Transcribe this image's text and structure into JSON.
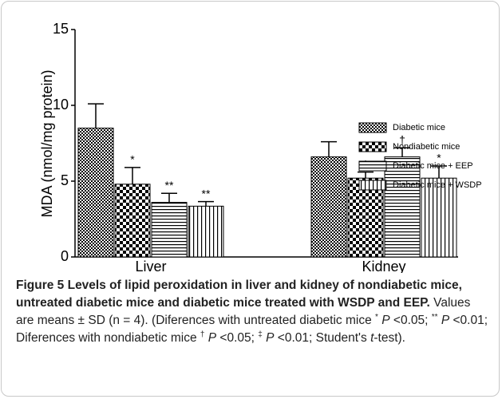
{
  "chart_data": {
    "type": "bar",
    "y_label": "MDA (nmol/mg protein)",
    "categories": [
      "Liver",
      "Kidney"
    ],
    "ylim": [
      0,
      15
    ],
    "yticks": [
      0,
      5,
      10,
      15
    ],
    "series": [
      {
        "name": "Diabetic mice",
        "color": "#000000",
        "pattern": "fine-check",
        "values": [
          8.5,
          6.6
        ],
        "errors": [
          1.6,
          1.0
        ],
        "annotations": [
          null,
          null
        ]
      },
      {
        "name": "Nondiabetic mice",
        "color": "#000000",
        "pattern": "check",
        "values": [
          4.8,
          5.2
        ],
        "errors": [
          1.1,
          0.4
        ],
        "annotations": [
          "*",
          "*"
        ]
      },
      {
        "name": "Diabetic mice + EEP",
        "color": "#000000",
        "pattern": "horizontal",
        "values": [
          3.6,
          6.6
        ],
        "errors": [
          0.6,
          0.6
        ],
        "annotations": [
          "**",
          "†"
        ]
      },
      {
        "name": "Diabetic mice + WSDP",
        "color": "#000000",
        "pattern": "vertical",
        "values": [
          3.35,
          5.2
        ],
        "errors": [
          0.3,
          0.8
        ],
        "annotations": [
          "**",
          "*"
        ]
      }
    ],
    "legend": "right"
  },
  "caption": [
    {
      "text": "Figure 5 Levels of lipid peroxidation in liver and kidney of nondiabetic mice, untreated diabetic mice and diabetic mice treated with WSDP and EEP.",
      "bold": true
    },
    {
      "text": " Values are means ± SD (n = 4). (Diferences with untreated diabetic mice "
    },
    {
      "text": "*",
      "sup": true
    },
    {
      "text": " "
    },
    {
      "text": "P",
      "italic": true
    },
    {
      "text": " <0.05; "
    },
    {
      "text": "**",
      "sup": true
    },
    {
      "text": " "
    },
    {
      "text": "P",
      "italic": true
    },
    {
      "text": " <0.01; Diferences with nondiabetic mice "
    },
    {
      "text": "†",
      "sup": true
    },
    {
      "text": " "
    },
    {
      "text": "P",
      "italic": true
    },
    {
      "text": " <0.05; "
    },
    {
      "text": "‡",
      "sup": true
    },
    {
      "text": " "
    },
    {
      "text": "P",
      "italic": true
    },
    {
      "text": " <0.01; Student's "
    },
    {
      "text": "t",
      "italic": true
    },
    {
      "text": "-test)."
    }
  ]
}
